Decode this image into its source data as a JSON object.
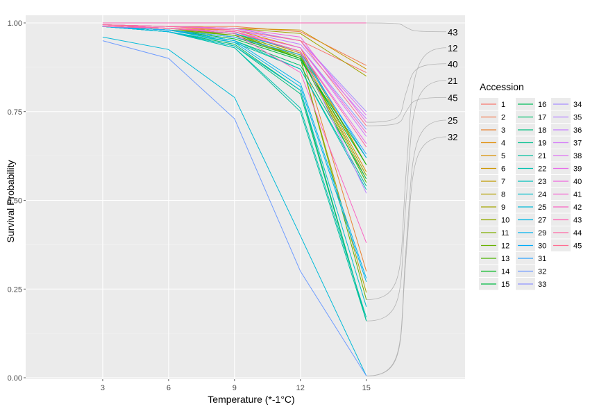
{
  "chart_data": {
    "type": "line",
    "xlabel": "Temperature (*-1°C)",
    "ylabel": "Survival Probability",
    "x": [
      3,
      6,
      9,
      12,
      15
    ],
    "x_ticks": [
      "3",
      "6",
      "9",
      "12",
      "15"
    ],
    "xlim": [
      0,
      20
    ],
    "y_ticks": [
      "0.00",
      "0.25",
      "0.50",
      "0.75",
      "1.00"
    ],
    "ylim": [
      0,
      1
    ],
    "legend_title": "Accession",
    "legend_position": "right",
    "series": [
      {
        "name": "1",
        "color": "#F8766D",
        "values": [
          0.995,
          0.99,
          0.985,
          0.95,
          0.86
        ]
      },
      {
        "name": "2",
        "color": "#F27D52",
        "values": [
          0.995,
          0.99,
          0.99,
          0.975,
          0.88
        ]
      },
      {
        "name": "3",
        "color": "#EA8331",
        "values": [
          0.99,
          0.985,
          0.975,
          0.92,
          0.3
        ]
      },
      {
        "name": "4",
        "color": "#E18A00",
        "values": [
          0.99,
          0.985,
          0.98,
          0.93,
          0.6
        ]
      },
      {
        "name": "5",
        "color": "#D89000",
        "values": [
          0.99,
          0.985,
          0.975,
          0.915,
          0.58
        ]
      },
      {
        "name": "6",
        "color": "#CD9600",
        "values": [
          0.995,
          0.99,
          0.985,
          0.98,
          0.87
        ]
      },
      {
        "name": "7",
        "color": "#C09B00",
        "values": [
          0.99,
          0.985,
          0.97,
          0.91,
          0.56
        ]
      },
      {
        "name": "8",
        "color": "#B3A000",
        "values": [
          0.99,
          0.985,
          0.965,
          0.9,
          0.24
        ]
      },
      {
        "name": "9",
        "color": "#A3A500",
        "values": [
          0.995,
          0.99,
          0.985,
          0.97,
          0.85
        ]
      },
      {
        "name": "10",
        "color": "#93AA00",
        "values": [
          0.99,
          0.985,
          0.975,
          0.92,
          0.6
        ]
      },
      {
        "name": "11",
        "color": "#7FAE00",
        "values": [
          0.99,
          0.985,
          0.97,
          0.91,
          0.57
        ]
      },
      {
        "name": "12",
        "color": "#68B100",
        "values": [
          0.99,
          0.98,
          0.97,
          0.9,
          0.22
        ]
      },
      {
        "name": "13",
        "color": "#4BB400",
        "values": [
          0.99,
          0.98,
          0.965,
          0.905,
          0.55
        ]
      },
      {
        "name": "14",
        "color": "#00B81F",
        "values": [
          0.99,
          0.98,
          0.96,
          0.9,
          0.6
        ]
      },
      {
        "name": "15",
        "color": "#00BA42",
        "values": [
          0.99,
          0.98,
          0.955,
          0.895,
          0.62
        ]
      },
      {
        "name": "16",
        "color": "#00BC59",
        "values": [
          0.99,
          0.975,
          0.94,
          0.81,
          0.16
        ]
      },
      {
        "name": "17",
        "color": "#00BE6D",
        "values": [
          0.99,
          0.98,
          0.95,
          0.88,
          0.56
        ]
      },
      {
        "name": "18",
        "color": "#00BF7F",
        "values": [
          0.99,
          0.975,
          0.935,
          0.8,
          0.16
        ]
      },
      {
        "name": "19",
        "color": "#00C08F",
        "values": [
          0.99,
          0.98,
          0.945,
          0.87,
          0.54
        ]
      },
      {
        "name": "21",
        "color": "#00C09F",
        "values": [
          0.99,
          0.975,
          0.93,
          0.75,
          0.16
        ]
      },
      {
        "name": "22",
        "color": "#00C0AF",
        "values": [
          0.99,
          0.975,
          0.93,
          0.76,
          0.17
        ]
      },
      {
        "name": "23",
        "color": "#00BFBD",
        "values": [
          0.99,
          0.98,
          0.95,
          0.87,
          0.53
        ]
      },
      {
        "name": "24",
        "color": "#00BDCB",
        "values": [
          0.99,
          0.975,
          0.935,
          0.81,
          0.2
        ]
      },
      {
        "name": "25",
        "color": "#00BAD8",
        "values": [
          0.96,
          0.925,
          0.79,
          0.4,
          0.005
        ]
      },
      {
        "name": "27",
        "color": "#00B6E4",
        "values": [
          0.99,
          0.975,
          0.945,
          0.82,
          0.27
        ]
      },
      {
        "name": "29",
        "color": "#00B2EF",
        "values": [
          0.99,
          0.98,
          0.95,
          0.83,
          0.28
        ]
      },
      {
        "name": "30",
        "color": "#00ACF9",
        "values": [
          0.995,
          0.985,
          0.97,
          0.92,
          0.62
        ]
      },
      {
        "name": "31",
        "color": "#2EA4FF",
        "values": [
          0.99,
          0.98,
          0.96,
          0.91,
          0.63
        ]
      },
      {
        "name": "32",
        "color": "#6F9CFF",
        "values": [
          0.95,
          0.9,
          0.73,
          0.3,
          0.005
        ]
      },
      {
        "name": "33",
        "color": "#8E94FF",
        "values": [
          0.995,
          0.985,
          0.975,
          0.93,
          0.7
        ]
      },
      {
        "name": "34",
        "color": "#A68CFF",
        "values": [
          0.995,
          0.99,
          0.985,
          0.95,
          0.75
        ]
      },
      {
        "name": "35",
        "color": "#B884FF",
        "values": [
          0.995,
          0.985,
          0.975,
          0.92,
          0.52
        ]
      },
      {
        "name": "36",
        "color": "#C77CFF",
        "values": [
          0.995,
          0.99,
          0.98,
          0.94,
          0.73
        ]
      },
      {
        "name": "37",
        "color": "#D375FA",
        "values": [
          0.995,
          0.985,
          0.975,
          0.93,
          0.68
        ]
      },
      {
        "name": "38",
        "color": "#DE6FF2",
        "values": [
          0.995,
          0.99,
          0.98,
          0.95,
          0.74
        ]
      },
      {
        "name": "39",
        "color": "#E769E9",
        "values": [
          0.995,
          0.985,
          0.975,
          0.92,
          0.66
        ]
      },
      {
        "name": "40",
        "color": "#EF67DE",
        "values": [
          0.995,
          0.99,
          0.985,
          0.96,
          0.72
        ]
      },
      {
        "name": "41",
        "color": "#F564D2",
        "values": [
          0.995,
          0.985,
          0.975,
          0.93,
          0.69
        ]
      },
      {
        "name": "42",
        "color": "#FA64C4",
        "values": [
          0.99,
          0.985,
          0.97,
          0.86,
          0.38
        ]
      },
      {
        "name": "43",
        "color": "#FD66B5",
        "values": [
          1.0,
          1.0,
          1.0,
          1.0,
          1.0
        ]
      },
      {
        "name": "44",
        "color": "#FF68A5",
        "values": [
          0.995,
          0.985,
          0.975,
          0.92,
          0.65
        ]
      },
      {
        "name": "45",
        "color": "#FF6C91",
        "values": [
          0.995,
          0.99,
          0.98,
          0.95,
          0.71
        ]
      }
    ],
    "line_labels": [
      {
        "text": "43",
        "series": "43",
        "label_y": 0.975
      },
      {
        "text": "12",
        "series": "12",
        "label_y": 0.93
      },
      {
        "text": "40",
        "series": "40",
        "label_y": 0.885
      },
      {
        "text": "21",
        "series": "21",
        "label_y": 0.838
      },
      {
        "text": "45",
        "series": "45",
        "label_y": 0.79
      },
      {
        "text": "25",
        "series": "25",
        "label_y": 0.726
      },
      {
        "text": "32",
        "series": "32",
        "label_y": 0.679
      }
    ]
  }
}
